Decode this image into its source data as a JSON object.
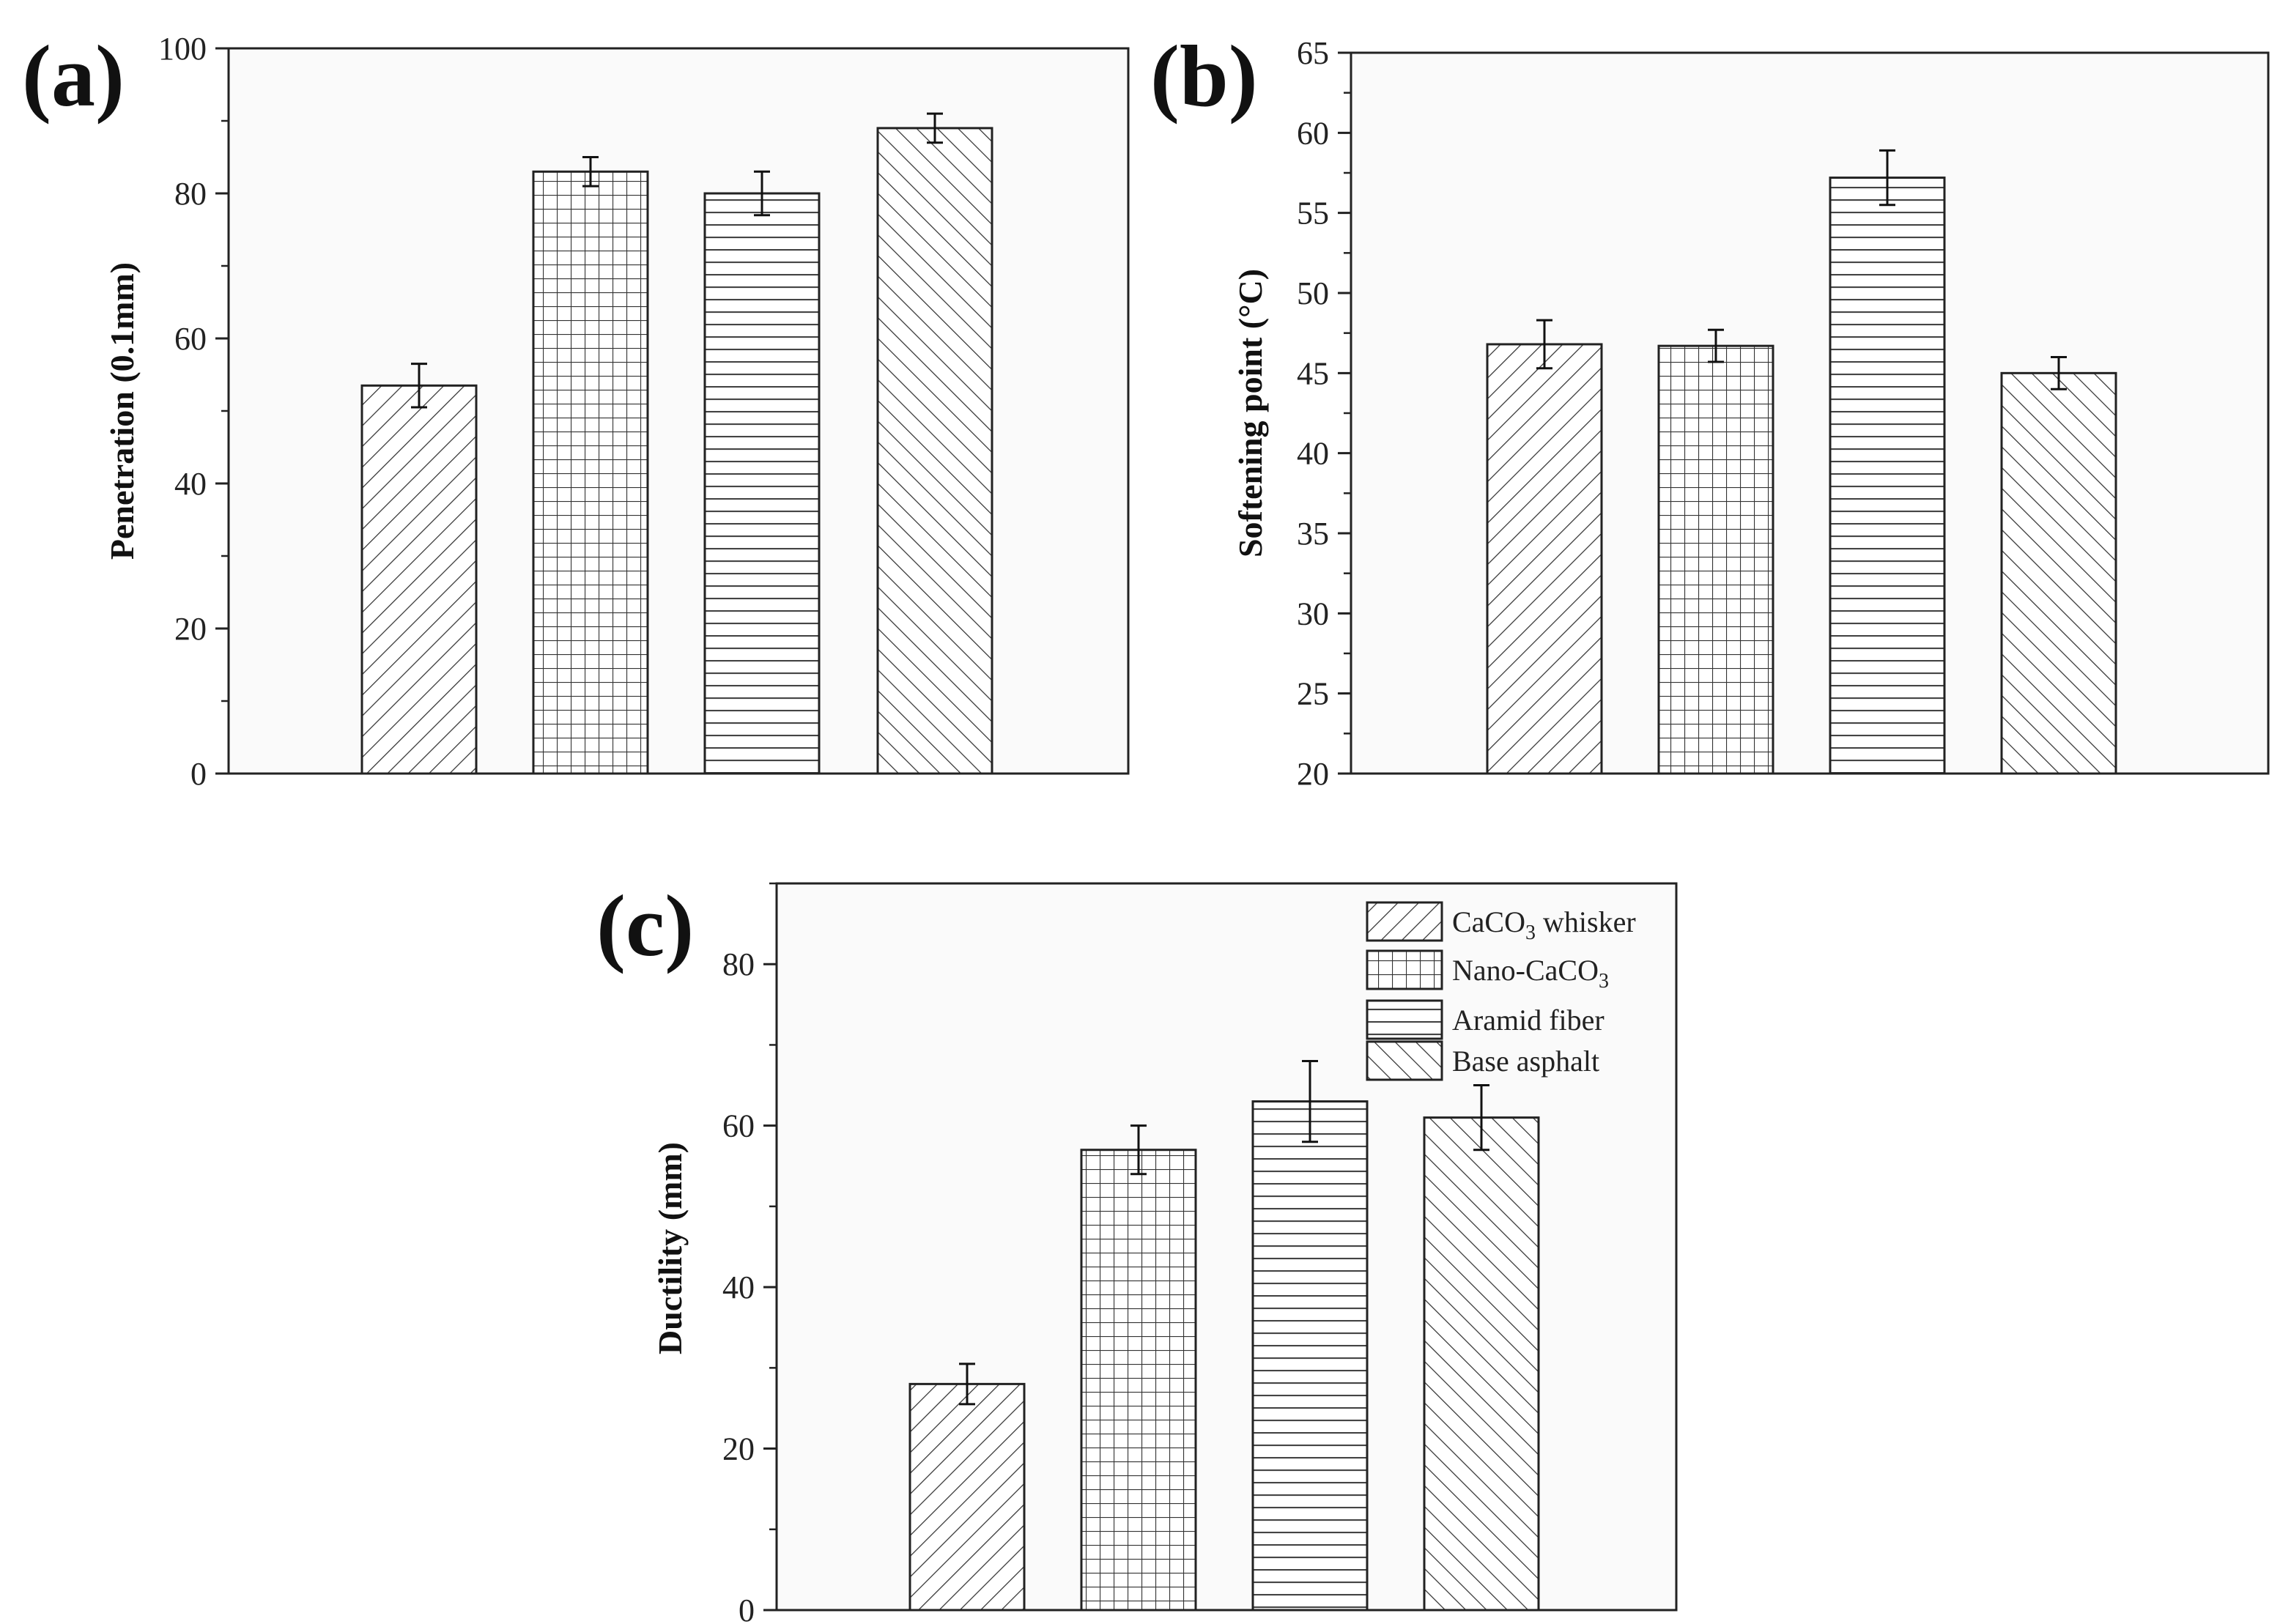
{
  "figure": {
    "panels": [
      "(a)",
      "(b)",
      "(c)"
    ]
  },
  "legend": {
    "items": [
      {
        "label": "CaCO",
        "sub": "3",
        "suffix": " whisker",
        "pattern": "diag-right"
      },
      {
        "label": "Nano-CaCO",
        "sub": "3",
        "suffix": "",
        "pattern": "grid"
      },
      {
        "label": "Aramid fiber",
        "sub": "",
        "suffix": "",
        "pattern": "horizontal"
      },
      {
        "label": "Base asphalt",
        "sub": "",
        "suffix": "",
        "pattern": "diag-left"
      }
    ]
  },
  "chart_data": [
    {
      "type": "bar",
      "panel": "(a)",
      "categories": [
        "CaCO3 whisker",
        "Nano-CaCO3",
        "Aramid fiber",
        "Base asphalt"
      ],
      "values": [
        53.5,
        83,
        80,
        89
      ],
      "errors": [
        3,
        2,
        3,
        2
      ],
      "title": "",
      "xlabel": "",
      "ylabel": "Penetration (0.1mm)",
      "ylim": [
        0,
        100
      ],
      "yticks": [
        0,
        20,
        40,
        60,
        80,
        100
      ],
      "minor_step": 10
    },
    {
      "type": "bar",
      "panel": "(b)",
      "categories": [
        "CaCO3 whisker",
        "Nano-CaCO3",
        "Aramid fiber",
        "Base asphalt"
      ],
      "values": [
        46.8,
        46.7,
        57.2,
        45.0
      ],
      "errors": [
        1.5,
        1.0,
        1.7,
        1.0
      ],
      "title": "",
      "xlabel": "",
      "ylabel": "Softening point (°C)",
      "ylim": [
        20,
        65
      ],
      "yticks": [
        20,
        25,
        30,
        35,
        40,
        45,
        50,
        55,
        60,
        65
      ],
      "minor_step": 2.5
    },
    {
      "type": "bar",
      "panel": "(c)",
      "categories": [
        "CaCO3 whisker",
        "Nano-CaCO3",
        "Aramid fiber",
        "Base asphalt"
      ],
      "values": [
        28,
        57,
        63,
        61
      ],
      "errors": [
        2.5,
        3,
        5,
        4
      ],
      "title": "",
      "xlabel": "",
      "ylabel": "Ductility (mm)",
      "ylim": [
        0,
        90
      ],
      "yticks": [
        0,
        20,
        40,
        60,
        80
      ],
      "minor_step": 10,
      "legend_position": "top-right"
    }
  ]
}
